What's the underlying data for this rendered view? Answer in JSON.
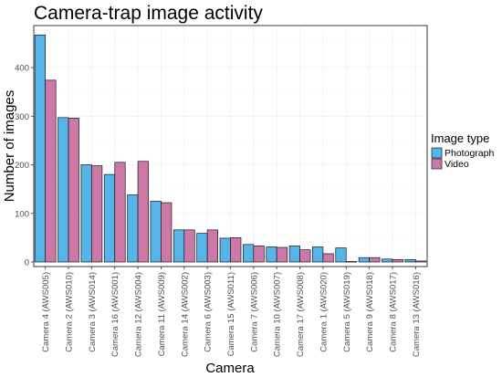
{
  "chart_data": {
    "type": "bar",
    "title": "Camera-trap image activity",
    "xlabel": "Camera",
    "ylabel": "Number of images",
    "ylim": [
      0,
      480
    ],
    "yticks": [
      0,
      100,
      200,
      300,
      400
    ],
    "grid": true,
    "legend": {
      "title": "Image type",
      "placement": "right"
    },
    "categories": [
      "Camera 4 (AWS005)",
      "Camera 2 (AWS010)",
      "Camera 3 (AWS014)",
      "Camera 16 (AWS001)",
      "Camera 12 (AWS004)",
      "Camera 11 (AWS009)",
      "Camera 14 (AWS002)",
      "Camera 6 (AWS003)",
      "Camera 15 (AWS011)",
      "Camera 7 (AWS006)",
      "Camera 10 (AWS007)",
      "Camera 17 (AWS008)",
      "Camera 1 (AWS020)",
      "Camera 5 (AWS019)",
      "Camera 9 (AWS018)",
      "Camera 8 (AWS017)",
      "Camera 13 (AWS016)"
    ],
    "series": [
      {
        "name": "Photograph",
        "color": "#56b4e9",
        "values": [
          467,
          297,
          200,
          180,
          138,
          125,
          66,
          59,
          49,
          36,
          31,
          33,
          31,
          29,
          9,
          6,
          5
        ]
      },
      {
        "name": "Video",
        "color": "#cc79a7",
        "values": [
          374,
          296,
          198,
          205,
          207,
          122,
          66,
          66,
          50,
          33,
          30,
          25,
          17,
          1,
          9,
          5,
          2
        ]
      }
    ]
  }
}
